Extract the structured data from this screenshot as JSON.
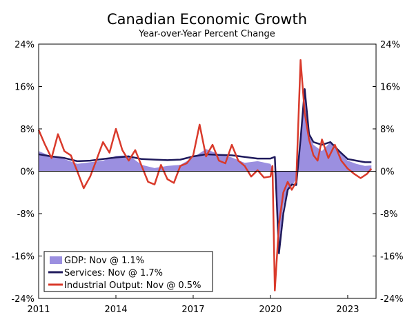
{
  "chart_data": {
    "type": "line",
    "title": "Canadian Economic Growth",
    "subtitle": "Year-over-Year Percent Change",
    "y_ticks": [
      "24%",
      "16%",
      "8%",
      "0%",
      "-8%",
      "-16%",
      "-24%"
    ],
    "y_tick_values": [
      24,
      16,
      8,
      0,
      -8,
      -16,
      -24
    ],
    "x_ticks": [
      "2011",
      "2014",
      "2017",
      "2020",
      "2023"
    ],
    "x_tick_values": [
      2011,
      2014,
      2017,
      2020,
      2023
    ],
    "xlim": [
      2011,
      2024.1
    ],
    "ylim": [
      -24,
      24
    ],
    "legend": {
      "position": "bottom-left",
      "items": [
        "GDP: Nov @ 1.1%",
        "Services: Nov @ 1.7%",
        "Industrial Output: Nov @ 0.5%"
      ]
    },
    "colors": {
      "gdp": "#9b8fe0",
      "services": "#1f1a5c",
      "industrial": "#d93a2b"
    },
    "series": [
      {
        "name": "GDP",
        "style": "area",
        "x": [
          2011.0,
          2011.5,
          2012.0,
          2012.5,
          2013.0,
          2013.5,
          2014.0,
          2014.5,
          2015.0,
          2015.5,
          2016.0,
          2016.5,
          2017.0,
          2017.5,
          2018.0,
          2018.5,
          2019.0,
          2019.5,
          2020.0,
          2020.17,
          2020.33,
          2020.5,
          2020.67,
          2020.83,
          2021.0,
          2021.17,
          2021.33,
          2021.5,
          2021.67,
          2022.0,
          2022.33,
          2022.67,
          2023.0,
          2023.33,
          2023.67,
          2023.92
        ],
        "y": [
          3.8,
          2.8,
          2.3,
          1.4,
          1.7,
          2.0,
          2.9,
          3.0,
          1.2,
          0.6,
          1.0,
          1.2,
          2.6,
          4.2,
          3.2,
          2.6,
          1.6,
          1.9,
          1.4,
          -0.5,
          -14.0,
          -6.5,
          -3.5,
          -2.8,
          -1.5,
          4.5,
          14.5,
          7.0,
          5.0,
          3.8,
          5.5,
          3.6,
          2.0,
          1.4,
          1.0,
          1.1
        ]
      },
      {
        "name": "Services",
        "style": "line",
        "x": [
          2011.0,
          2011.5,
          2012.0,
          2012.5,
          2013.0,
          2013.5,
          2014.0,
          2014.5,
          2015.0,
          2015.5,
          2016.0,
          2016.5,
          2017.0,
          2017.5,
          2018.0,
          2018.5,
          2019.0,
          2019.5,
          2020.0,
          2020.17,
          2020.33,
          2020.5,
          2020.67,
          2020.83,
          2021.0,
          2021.17,
          2021.33,
          2021.5,
          2021.67,
          2022.0,
          2022.33,
          2022.67,
          2023.0,
          2023.33,
          2023.67,
          2023.92
        ],
        "y": [
          3.2,
          2.8,
          2.5,
          1.9,
          2.0,
          2.3,
          2.6,
          2.8,
          2.3,
          2.2,
          2.1,
          2.2,
          2.8,
          3.2,
          3.1,
          3.0,
          2.7,
          2.4,
          2.4,
          2.7,
          -15.5,
          -8.0,
          -3.5,
          -2.5,
          -2.6,
          6.0,
          15.5,
          7.0,
          5.5,
          5.0,
          5.5,
          3.8,
          2.3,
          2.0,
          1.7,
          1.7
        ]
      },
      {
        "name": "Industrial Output",
        "style": "line",
        "x": [
          2011.0,
          2011.25,
          2011.5,
          2011.75,
          2012.0,
          2012.25,
          2012.5,
          2012.75,
          2013.0,
          2013.25,
          2013.5,
          2013.75,
          2014.0,
          2014.25,
          2014.5,
          2014.75,
          2015.0,
          2015.25,
          2015.5,
          2015.75,
          2016.0,
          2016.25,
          2016.5,
          2016.75,
          2017.0,
          2017.25,
          2017.5,
          2017.75,
          2018.0,
          2018.25,
          2018.5,
          2018.75,
          2019.0,
          2019.25,
          2019.5,
          2019.75,
          2020.0,
          2020.08,
          2020.17,
          2020.33,
          2020.5,
          2020.67,
          2020.83,
          2021.0,
          2021.17,
          2021.33,
          2021.5,
          2021.67,
          2021.83,
          2022.0,
          2022.25,
          2022.5,
          2022.75,
          2023.0,
          2023.25,
          2023.5,
          2023.75,
          2023.92
        ],
        "y": [
          7.8,
          5.0,
          2.5,
          7.0,
          3.8,
          3.0,
          0.0,
          -3.2,
          -1.0,
          2.2,
          5.5,
          3.5,
          8.0,
          4.0,
          2.0,
          4.0,
          1.0,
          -2.0,
          -2.5,
          1.2,
          -1.5,
          -2.2,
          1.0,
          1.5,
          3.0,
          8.8,
          2.8,
          5.0,
          2.0,
          1.5,
          5.0,
          2.0,
          1.0,
          -1.0,
          0.2,
          -1.2,
          -1.0,
          1.0,
          -22.5,
          -10.0,
          -4.0,
          -2.0,
          -3.5,
          -2.0,
          21.0,
          11.0,
          6.0,
          3.0,
          2.0,
          6.0,
          2.5,
          5.0,
          2.0,
          0.5,
          -0.5,
          -1.3,
          -0.5,
          0.5
        ]
      }
    ]
  }
}
